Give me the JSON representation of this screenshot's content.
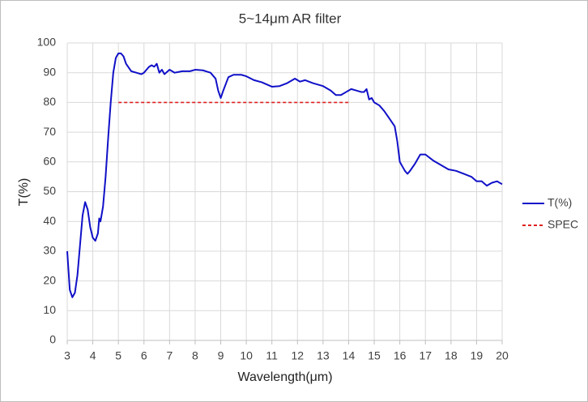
{
  "chart_data": {
    "type": "line",
    "title": "5~14μm AR filter",
    "x_label": "Wavelength(μm)",
    "y_label": "T(%)",
    "xlim": [
      3,
      20
    ],
    "xticks": [
      3,
      4,
      5,
      6,
      7,
      8,
      9,
      10,
      11,
      12,
      13,
      14,
      15,
      16,
      17,
      18,
      19,
      20
    ],
    "ylim": [
      0,
      100
    ],
    "yticks": [
      0,
      10,
      20,
      30,
      40,
      50,
      60,
      70,
      80,
      90,
      100
    ],
    "grid": true,
    "legend": "right",
    "series": [
      {
        "name": "T(%)",
        "color": "#1010c8",
        "style": "solid",
        "x": [
          3.0,
          3.1,
          3.2,
          3.3,
          3.4,
          3.5,
          3.6,
          3.7,
          3.8,
          3.9,
          4.0,
          4.1,
          4.2,
          4.25,
          4.3,
          4.4,
          4.5,
          4.6,
          4.7,
          4.8,
          4.9,
          5.0,
          5.1,
          5.2,
          5.3,
          5.5,
          5.7,
          5.9,
          6.0,
          6.1,
          6.2,
          6.3,
          6.4,
          6.5,
          6.6,
          6.7,
          6.8,
          7.0,
          7.2,
          7.5,
          7.8,
          8.0,
          8.3,
          8.6,
          8.8,
          8.9,
          9.0,
          9.1,
          9.3,
          9.5,
          9.8,
          10.0,
          10.3,
          10.6,
          11.0,
          11.3,
          11.6,
          11.9,
          12.1,
          12.3,
          12.6,
          13.0,
          13.3,
          13.5,
          13.7,
          13.9,
          14.1,
          14.3,
          14.5,
          14.6,
          14.7,
          14.8,
          14.9,
          15.0,
          15.2,
          15.4,
          15.6,
          15.8,
          15.9,
          16.0,
          16.1,
          16.2,
          16.3,
          16.4,
          16.6,
          16.8,
          17.0,
          17.3,
          17.6,
          17.9,
          18.2,
          18.5,
          18.8,
          19.0,
          19.2,
          19.4,
          19.6,
          19.8,
          20.0
        ],
        "values": [
          30,
          17,
          14.5,
          16,
          22,
          32,
          42,
          46.5,
          44,
          38,
          34.5,
          33.5,
          36,
          41,
          40,
          45,
          55,
          68,
          80,
          90,
          95,
          96.5,
          96.5,
          95.5,
          93,
          90.5,
          90,
          89.5,
          90,
          91,
          92,
          92.5,
          92,
          93,
          90,
          91,
          89.5,
          91,
          90,
          90.5,
          90.5,
          91,
          90.8,
          90,
          88,
          84,
          81.5,
          84,
          88.5,
          89.3,
          89.3,
          88.8,
          87.5,
          86.8,
          85.3,
          85.5,
          86.5,
          88,
          87,
          87.5,
          86.5,
          85.5,
          84,
          82.5,
          82.5,
          83.5,
          84.5,
          84,
          83.5,
          83.5,
          84.5,
          81,
          81.5,
          80,
          79,
          77,
          74.5,
          72,
          67,
          60,
          58.5,
          57,
          56,
          57,
          59.5,
          62.5,
          62.5,
          60.5,
          59,
          57.5,
          57,
          56,
          55,
          53.5,
          53.5,
          52,
          53,
          53.5,
          52.5
        ]
      },
      {
        "name": "SPEC",
        "color": "#e02020",
        "style": "dashed",
        "x": [
          5,
          14
        ],
        "values": [
          80,
          80
        ]
      }
    ]
  }
}
